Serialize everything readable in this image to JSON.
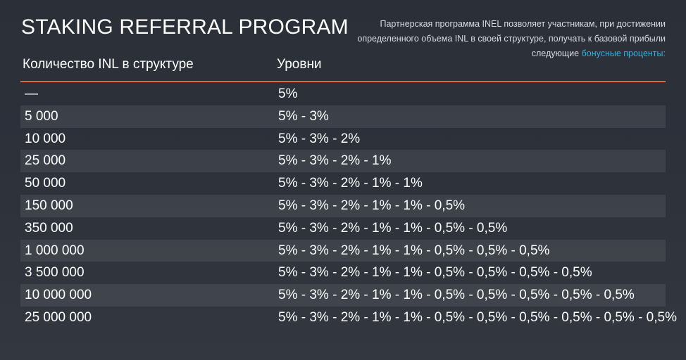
{
  "title": "STAKING REFERRAL PROGRAM",
  "description": {
    "text": "Партнерская программа INEL позволяет участникам, при достижении определенного объема INL в своей структуре, получать к базовой прибыли следующие ",
    "link": "бонусные проценты:"
  },
  "columns": {
    "amount": "Количество INL в структуре",
    "levels": "Уровни"
  },
  "accent_color": "#e2663a",
  "link_color": "#2db3e6",
  "rows": [
    {
      "amount": "—",
      "levels": "5%"
    },
    {
      "amount": "5 000",
      "levels": "5% - 3%"
    },
    {
      "amount": "10 000",
      "levels": "5% - 3% - 2%"
    },
    {
      "amount": "25 000",
      "levels": "5% - 3% - 2% - 1%"
    },
    {
      "amount": "50 000",
      "levels": "5% - 3% - 2% - 1% - 1%"
    },
    {
      "amount": "150 000",
      "levels": "5% - 3% - 2% - 1% - 1% - 0,5%"
    },
    {
      "amount": "350 000",
      "levels": "5% - 3% - 2% - 1% - 1% - 0,5% - 0,5%"
    },
    {
      "amount": "1 000 000",
      "levels": "5% - 3% - 2% - 1% - 1% - 0,5% - 0,5% - 0,5%"
    },
    {
      "amount": "3 500 000",
      "levels": "5% - 3% - 2% - 1% - 1% - 0,5% - 0,5% - 0,5% - 0,5%"
    },
    {
      "amount": "10 000 000",
      "levels": "5% - 3% - 2% - 1% - 1% - 0,5% - 0,5% - 0,5% - 0,5% - 0,5%"
    },
    {
      "amount": "25 000 000",
      "levels": "5% - 3% - 2% - 1% - 1% - 0,5% - 0,5% - 0,5% - 0,5% - 0,5% - 0,5%"
    }
  ]
}
